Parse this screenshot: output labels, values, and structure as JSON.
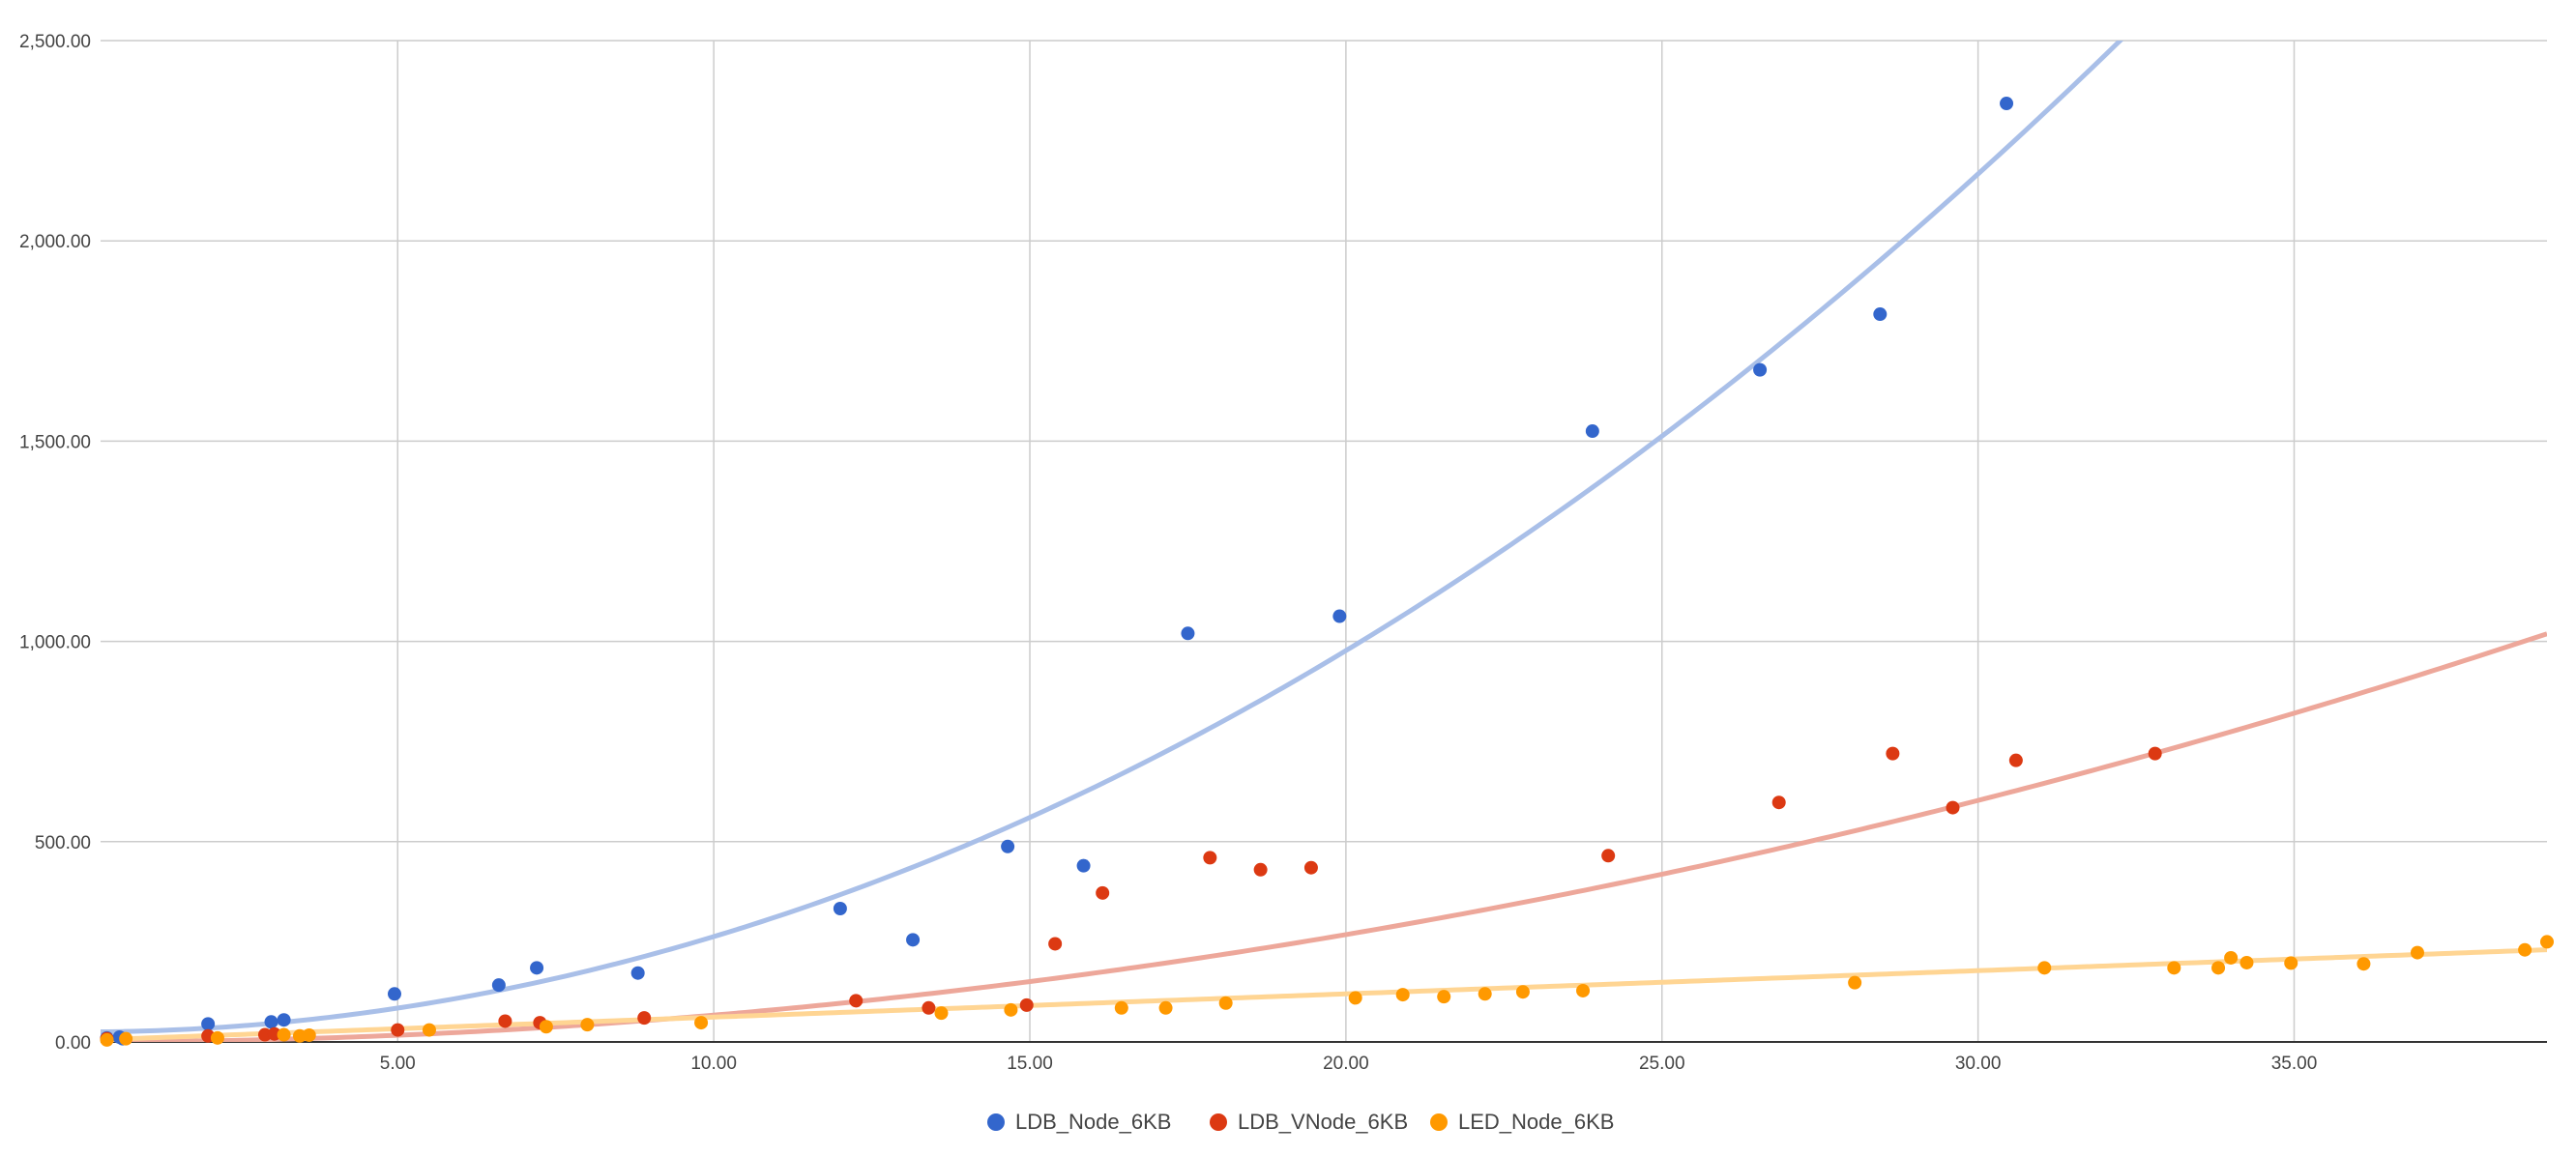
{
  "chart_data": {
    "type": "scatter",
    "title": "",
    "xlabel": "",
    "ylabel": "",
    "xlim": [
      0.3,
      39.0
    ],
    "ylim": [
      0,
      2500
    ],
    "x_ticks": [
      5,
      10,
      15,
      20,
      25,
      30,
      35
    ],
    "x_tick_labels": [
      "5.00",
      "10.00",
      "15.00",
      "20.00",
      "25.00",
      "30.00",
      "35.00"
    ],
    "y_ticks": [
      0,
      500,
      1000,
      1500,
      2000,
      2500
    ],
    "y_tick_labels": [
      "0.00",
      "500.00",
      "1,000.00",
      "1,500.00",
      "2,000.00",
      "2,500.00"
    ],
    "grid": true,
    "legend_position": "bottom",
    "series": [
      {
        "name": "LDB_Node_6KB",
        "color": "#3366cc",
        "trend_color": "#a9bfe8",
        "trendline": "polynomial",
        "trend_coefficients": [
          25,
          0,
          2.38
        ],
        "points": [
          {
            "x": 0.4,
            "y": 10
          },
          {
            "x": 0.6,
            "y": 12
          },
          {
            "x": 0.65,
            "y": 8
          },
          {
            "x": 2.0,
            "y": 45
          },
          {
            "x": 3.0,
            "y": 50
          },
          {
            "x": 3.2,
            "y": 55
          },
          {
            "x": 4.95,
            "y": 120
          },
          {
            "x": 6.6,
            "y": 142
          },
          {
            "x": 7.2,
            "y": 185
          },
          {
            "x": 8.8,
            "y": 172
          },
          {
            "x": 12.0,
            "y": 333
          },
          {
            "x": 13.15,
            "y": 255
          },
          {
            "x": 14.65,
            "y": 488
          },
          {
            "x": 15.85,
            "y": 440
          },
          {
            "x": 17.5,
            "y": 1020
          },
          {
            "x": 19.9,
            "y": 1063
          },
          {
            "x": 23.9,
            "y": 1525
          },
          {
            "x": 26.55,
            "y": 1678
          },
          {
            "x": 28.45,
            "y": 1817
          },
          {
            "x": 30.45,
            "y": 2343
          }
        ]
      },
      {
        "name": "LDB_VNode_6KB",
        "color": "#dc3912",
        "trend_color": "#eda79a",
        "trendline": "polynomial",
        "trend_coefficients": [
          0,
          0,
          0.67
        ],
        "points": [
          {
            "x": 0.4,
            "y": 8
          },
          {
            "x": 2.0,
            "y": 15
          },
          {
            "x": 2.9,
            "y": 18
          },
          {
            "x": 3.05,
            "y": 20
          },
          {
            "x": 5.0,
            "y": 30
          },
          {
            "x": 6.7,
            "y": 52
          },
          {
            "x": 7.25,
            "y": 48
          },
          {
            "x": 8.9,
            "y": 60
          },
          {
            "x": 12.25,
            "y": 103
          },
          {
            "x": 13.4,
            "y": 85
          },
          {
            "x": 14.95,
            "y": 92
          },
          {
            "x": 15.4,
            "y": 245
          },
          {
            "x": 16.15,
            "y": 372
          },
          {
            "x": 17.85,
            "y": 460
          },
          {
            "x": 18.65,
            "y": 430
          },
          {
            "x": 19.45,
            "y": 435
          },
          {
            "x": 24.15,
            "y": 465
          },
          {
            "x": 26.85,
            "y": 598
          },
          {
            "x": 28.65,
            "y": 720
          },
          {
            "x": 29.6,
            "y": 585
          },
          {
            "x": 30.6,
            "y": 703
          },
          {
            "x": 32.8,
            "y": 720
          }
        ]
      },
      {
        "name": "LED_Node_6KB",
        "color": "#ff9900",
        "trend_color": "#ffd593",
        "trendline": "linear",
        "trend_coefficients": [
          4,
          5.8,
          0
        ],
        "points": [
          {
            "x": 0.4,
            "y": 5
          },
          {
            "x": 0.7,
            "y": 8
          },
          {
            "x": 2.15,
            "y": 10
          },
          {
            "x": 3.2,
            "y": 18
          },
          {
            "x": 3.45,
            "y": 15
          },
          {
            "x": 3.6,
            "y": 17
          },
          {
            "x": 5.5,
            "y": 30
          },
          {
            "x": 7.35,
            "y": 38
          },
          {
            "x": 8.0,
            "y": 43
          },
          {
            "x": 9.8,
            "y": 48
          },
          {
            "x": 13.6,
            "y": 72
          },
          {
            "x": 14.7,
            "y": 80
          },
          {
            "x": 16.45,
            "y": 85
          },
          {
            "x": 17.15,
            "y": 85
          },
          {
            "x": 18.1,
            "y": 97
          },
          {
            "x": 20.15,
            "y": 110
          },
          {
            "x": 20.9,
            "y": 118
          },
          {
            "x": 21.55,
            "y": 113
          },
          {
            "x": 22.2,
            "y": 120
          },
          {
            "x": 22.8,
            "y": 125
          },
          {
            "x": 23.75,
            "y": 128
          },
          {
            "x": 28.05,
            "y": 148
          },
          {
            "x": 31.05,
            "y": 185
          },
          {
            "x": 33.1,
            "y": 185
          },
          {
            "x": 33.8,
            "y": 185
          },
          {
            "x": 34.0,
            "y": 210
          },
          {
            "x": 34.25,
            "y": 198
          },
          {
            "x": 34.95,
            "y": 197
          },
          {
            "x": 36.1,
            "y": 195
          },
          {
            "x": 36.95,
            "y": 223
          },
          {
            "x": 38.65,
            "y": 230
          },
          {
            "x": 39.0,
            "y": 250
          }
        ]
      }
    ]
  }
}
